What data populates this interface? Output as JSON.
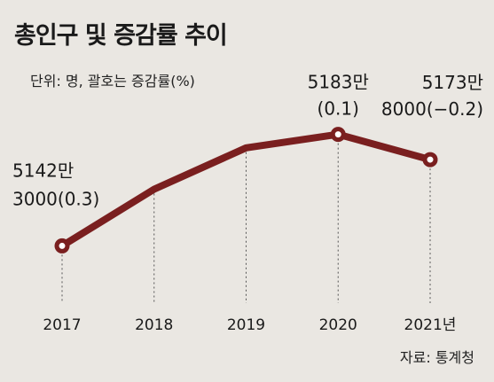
{
  "title": "총인구 및 증감률 추이",
  "unit": "단위: 명, 괄호는 증감률(%)",
  "source": "자료: 통계청",
  "colors": {
    "line": "#7a1f1f",
    "marker_fill": "#ffffff",
    "background": "#eae7e2",
    "guide": "#555555"
  },
  "chart_data": {
    "type": "line",
    "title": "총인구 및 증감률 추이",
    "xlabel": "",
    "ylabel": "",
    "tick_labels": [
      "2017",
      "2018",
      "2019",
      "2020",
      "2021년"
    ],
    "x": [
      2017,
      2018,
      2019,
      2020,
      2021
    ],
    "y": [
      51423000,
      51630000,
      51781000,
      51830000,
      51738000
    ],
    "growth_rate": [
      0.3,
      null,
      null,
      0.1,
      -0.2
    ],
    "ylim": [
      51350000,
      51900000
    ],
    "grid": false,
    "marked_points": [
      0,
      3,
      4
    ],
    "point_labels": [
      {
        "index": 0,
        "line1": "5142만",
        "line2": "3000(0.3)"
      },
      {
        "index": 3,
        "line1": "5183만",
        "line2": "(0.1)"
      },
      {
        "index": 4,
        "line1": "5173만",
        "line2": "8000(−0.2)"
      }
    ]
  }
}
